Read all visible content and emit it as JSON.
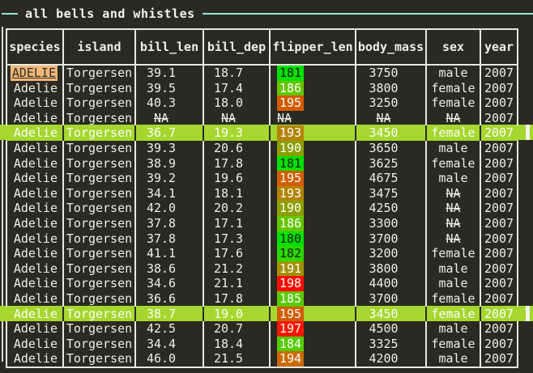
{
  "title": "all bells and whistles",
  "theme": {
    "background": "#2a2a22",
    "border": "#e9e9e3",
    "text": "#eeeee7",
    "title_rule": "#93e2d8",
    "highlight_row": "#a5d72f",
    "species_badge_bg": "#f0b878",
    "species_badge_fg": "#30302a"
  },
  "table": {
    "columns": [
      "species",
      "island",
      "bill_len",
      "bill_dep",
      "flipper_len",
      "body_mass",
      "sex",
      "year"
    ],
    "flipper_colors": {
      "180": {
        "bg": "#00e000",
        "fg": "#1c1c16"
      },
      "181": {
        "bg": "#00e000",
        "fg": "#1c1c16"
      },
      "182": {
        "bg": "#2ad800",
        "fg": "#1c1c16"
      },
      "184": {
        "bg": "#53cc00",
        "fg": "#ffffff"
      },
      "185": {
        "bg": "#5cc900",
        "fg": "#ffffff"
      },
      "186": {
        "bg": "#64c600",
        "fg": "#ffffff"
      },
      "190": {
        "bg": "#8aa000",
        "fg": "#ffffff"
      },
      "191": {
        "bg": "#a29200",
        "fg": "#ffffff"
      },
      "193": {
        "bg": "#b28400",
        "fg": "#ffffff"
      },
      "194": {
        "bg": "#c96a00",
        "fg": "#ffffff"
      },
      "195": {
        "bg": "#d25d00",
        "fg": "#ffffff"
      },
      "197": {
        "bg": "#f91600",
        "fg": "#ffffff"
      },
      "198": {
        "bg": "#fe0b00",
        "fg": "#ffffff"
      }
    },
    "rows": [
      {
        "cells": [
          "ADELIE",
          "Torgersen",
          "39.1",
          "18.7",
          "181",
          "3750",
          "male",
          "2007"
        ],
        "badge": true
      },
      {
        "cells": [
          "Adelie",
          "Torgersen",
          "39.5",
          "17.4",
          "186",
          "3800",
          "female",
          "2007"
        ]
      },
      {
        "cells": [
          "Adelie",
          "Torgersen",
          "40.3",
          "18.0",
          "195",
          "3250",
          "female",
          "2007"
        ]
      },
      {
        "cells": [
          "Adelie",
          "Torgersen",
          "NA",
          "NA",
          "NA",
          "NA",
          "NA",
          "2007"
        ]
      },
      {
        "cells": [
          "Adelie",
          "Torgersen",
          "36.7",
          "19.3",
          "193",
          "3450",
          "female",
          "2007"
        ],
        "highlight": true
      },
      {
        "cells": [
          "Adelie",
          "Torgersen",
          "39.3",
          "20.6",
          "190",
          "3650",
          "male",
          "2007"
        ]
      },
      {
        "cells": [
          "Adelie",
          "Torgersen",
          "38.9",
          "17.8",
          "181",
          "3625",
          "female",
          "2007"
        ]
      },
      {
        "cells": [
          "Adelie",
          "Torgersen",
          "39.2",
          "19.6",
          "195",
          "4675",
          "male",
          "2007"
        ]
      },
      {
        "cells": [
          "Adelie",
          "Torgersen",
          "34.1",
          "18.1",
          "193",
          "3475",
          "NA",
          "2007"
        ]
      },
      {
        "cells": [
          "Adelie",
          "Torgersen",
          "42.0",
          "20.2",
          "190",
          "4250",
          "NA",
          "2007"
        ]
      },
      {
        "cells": [
          "Adelie",
          "Torgersen",
          "37.8",
          "17.1",
          "186",
          "3300",
          "NA",
          "2007"
        ]
      },
      {
        "cells": [
          "Adelie",
          "Torgersen",
          "37.8",
          "17.3",
          "180",
          "3700",
          "NA",
          "2007"
        ]
      },
      {
        "cells": [
          "Adelie",
          "Torgersen",
          "41.1",
          "17.6",
          "182",
          "3200",
          "female",
          "2007"
        ]
      },
      {
        "cells": [
          "Adelie",
          "Torgersen",
          "38.6",
          "21.2",
          "191",
          "3800",
          "male",
          "2007"
        ]
      },
      {
        "cells": [
          "Adelie",
          "Torgersen",
          "34.6",
          "21.1",
          "198",
          "4400",
          "male",
          "2007"
        ]
      },
      {
        "cells": [
          "Adelie",
          "Torgersen",
          "36.6",
          "17.8",
          "185",
          "3700",
          "female",
          "2007"
        ]
      },
      {
        "cells": [
          "Adelie",
          "Torgersen",
          "38.7",
          "19.0",
          "195",
          "3450",
          "female",
          "2007"
        ],
        "highlight": true
      },
      {
        "cells": [
          "Adelie",
          "Torgersen",
          "42.5",
          "20.7",
          "197",
          "4500",
          "male",
          "2007"
        ]
      },
      {
        "cells": [
          "Adelie",
          "Torgersen",
          "34.4",
          "18.4",
          "184",
          "3325",
          "female",
          "2007"
        ]
      },
      {
        "cells": [
          "Adelie",
          "Torgersen",
          "46.0",
          "21.5",
          "194",
          "4200",
          "male",
          "2007"
        ]
      }
    ]
  }
}
